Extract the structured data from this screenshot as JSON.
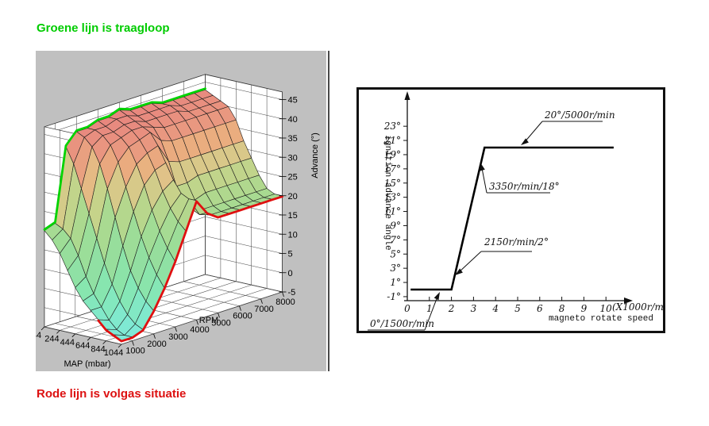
{
  "captions": {
    "green": "Groene lijn is traagloop",
    "green_color": "#00cc00",
    "red": "Rode lijn is volgas situatie",
    "red_color": "#dd1111"
  },
  "chart_data": [
    {
      "type": "surface3d",
      "name": "ignition-advance-map",
      "panel_bg": "#c0c0c0",
      "axes": {
        "x": {
          "label": "RPM",
          "ticks": [
            1000,
            2000,
            3000,
            4000,
            5000,
            6000,
            7000,
            8000
          ]
        },
        "y": {
          "label": "MAP (mbar)",
          "ticks": [
            44,
            244,
            444,
            644,
            844,
            1044
          ]
        },
        "z": {
          "label": "Advance (°)",
          "ticks": [
            -5,
            0,
            5,
            10,
            15,
            20,
            25,
            30,
            35,
            40,
            45
          ],
          "range": [
            -5,
            47
          ]
        }
      },
      "rpm": [
        500,
        1000,
        1500,
        2000,
        2500,
        3000,
        3500,
        4000,
        4500,
        5000,
        5500,
        6000,
        6500,
        7000,
        7500,
        8000
      ],
      "map_mbar": [
        44,
        144,
        244,
        344,
        444,
        544,
        644,
        744,
        844,
        944,
        1044
      ],
      "advance_deg": [
        [
          20,
          21,
          40,
          43,
          43,
          44,
          44,
          45,
          44,
          44,
          44,
          43,
          43,
          43,
          43,
          43
        ],
        [
          18,
          20,
          36,
          42,
          43,
          43,
          44,
          44,
          43,
          43,
          43,
          43,
          42,
          42,
          42,
          42
        ],
        [
          15,
          18,
          30,
          40,
          42,
          42,
          43,
          43,
          42,
          42,
          42,
          42,
          41,
          41,
          41,
          41
        ],
        [
          11,
          14,
          24,
          36,
          40,
          41,
          42,
          42,
          41,
          40,
          40,
          40,
          40,
          40,
          40,
          40
        ],
        [
          7,
          9,
          18,
          30,
          36,
          39,
          40,
          41,
          38,
          37,
          37,
          37,
          37,
          37,
          37,
          37
        ],
        [
          4,
          5,
          12,
          23,
          30,
          35,
          37,
          38,
          33,
          32,
          32,
          32,
          32,
          32,
          32,
          32
        ],
        [
          2,
          2,
          7,
          16,
          24,
          30,
          33,
          34,
          27,
          27,
          28,
          28,
          28,
          28,
          28,
          28
        ],
        [
          0,
          -1,
          3,
          10,
          18,
          24,
          28,
          30,
          24,
          23,
          24,
          24,
          24,
          24,
          24,
          24
        ],
        [
          -2,
          -3,
          0,
          6,
          13,
          19,
          24,
          27,
          22,
          21,
          21,
          21,
          21,
          21,
          21,
          21
        ],
        [
          -3,
          -4,
          -2,
          3,
          9,
          15,
          21,
          26,
          21,
          20,
          20,
          20,
          20,
          20,
          20,
          20
        ],
        [
          -4,
          -4,
          -3,
          1,
          6,
          12,
          19,
          26,
          22,
          20,
          20,
          20,
          20,
          20,
          20,
          20
        ]
      ],
      "idle_line": {
        "row": "MAP 44",
        "color": "#00d300"
      },
      "full_throttle_line": {
        "row": "MAP 1044",
        "color": "#e01010"
      },
      "color_stops": [
        [
          -5,
          "#7de9dc"
        ],
        [
          0,
          "#80e9cc"
        ],
        [
          6,
          "#86e6b0"
        ],
        [
          12,
          "#92dfa0"
        ],
        [
          18,
          "#9fdd96"
        ],
        [
          22,
          "#aed88e"
        ],
        [
          27,
          "#c6d38a"
        ],
        [
          31,
          "#dfc489"
        ],
        [
          34,
          "#eab07f"
        ],
        [
          38,
          "#e99a80"
        ],
        [
          45,
          "#e8837e"
        ]
      ]
    },
    {
      "type": "line",
      "name": "magneto-advance-curve",
      "x_axis": {
        "label": "magneto rotate speed",
        "unit": "(X1000r/min)",
        "tick_labels": [
          "0",
          "1",
          "2",
          "3",
          "4",
          "5",
          "6",
          "8",
          "9",
          "10"
        ]
      },
      "y_axis": {
        "label": "ignition advance angle",
        "tick_labels": [
          "-1°",
          "1°",
          "3°",
          "5°",
          "7°",
          "9°",
          "11°",
          "13°",
          "15°",
          "17°",
          "19°",
          "21°",
          "23°"
        ]
      },
      "curve": [
        [
          0.15,
          0
        ],
        [
          2,
          0
        ],
        [
          3.5,
          20
        ],
        [
          9.35,
          20
        ]
      ],
      "annotations": [
        {
          "text": "20°/5000r/min"
        },
        {
          "text": "3350r/min/18°"
        },
        {
          "text": "2150r/min/2°"
        },
        {
          "text": "0°/1500r/min"
        }
      ]
    }
  ]
}
